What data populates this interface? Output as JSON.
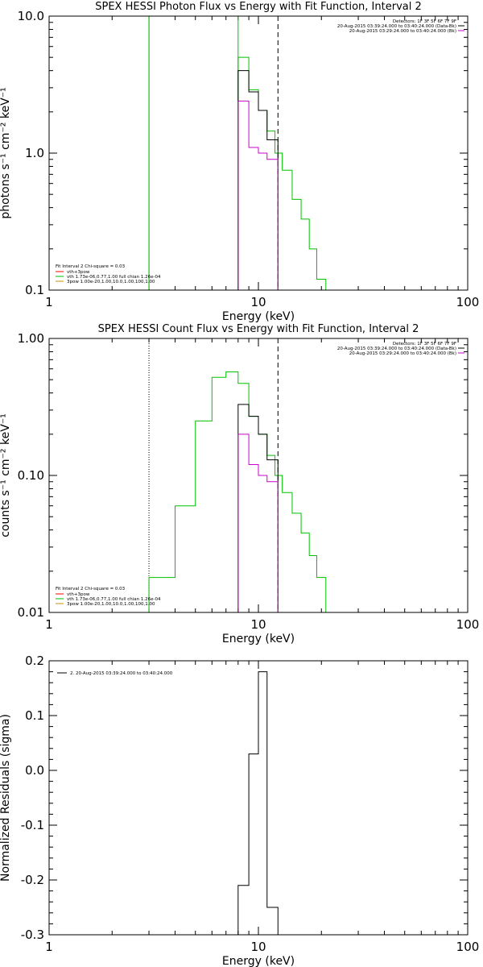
{
  "chart_data": [
    {
      "type": "line",
      "title": "SPEX HESSI Photon Flux vs Energy with Fit Function, Interval 2",
      "xlabel": "Energy (keV)",
      "ylabel": "photons s⁻¹ cm⁻² keV⁻¹",
      "xscale": "log",
      "yscale": "log",
      "xlim": [
        1,
        100
      ],
      "ylim": [
        0.1,
        10.0
      ],
      "xticks": [
        {
          "v": 1,
          "label": "1"
        },
        {
          "v": 10,
          "label": "10"
        },
        {
          "v": 100,
          "label": "100"
        }
      ],
      "yticks": [
        {
          "v": 0.1,
          "label": "0.1"
        },
        {
          "v": 1.0,
          "label": "1.0"
        },
        {
          "v": 10.0,
          "label": "10.0"
        }
      ],
      "vlines": [
        {
          "x": 3.0,
          "style": "solid",
          "color": "#00c000"
        },
        {
          "x": 12.4,
          "style": "dashed",
          "color": "#000000"
        }
      ],
      "legend_header": "Fit Interval 2   Chi-square = 0.03",
      "legend": [
        {
          "label": "vth+3pow",
          "color": "#ff0000"
        },
        {
          "label": "vth 1.73e-06,0.77,1.00   full chian 1.26e-04",
          "color": "#00c000"
        },
        {
          "label": "3pow 1.00e-20,1.00,10.0,1.00,100,1.00",
          "color": "#d09000"
        }
      ],
      "detectors": [
        {
          "label": "Detectors: 1F 3F 5F 6F 7F 9F",
          "color": null
        },
        {
          "label": "20-Aug-2015 03:39:24.000 to 03:40:24.000 (Data-Bk)",
          "color": "#000000"
        },
        {
          "label": "20-Aug-2015 03:29:24.000 to 03:40:24.000 (Bk)",
          "color": "#cc00cc"
        }
      ],
      "series": [
        {
          "color": "#00c000",
          "edges": [
            3.0,
            3.0
          ],
          "values": [],
          "vertical_to_top": [
            3.0,
            3.0,
            8.0
          ]
        },
        {
          "color": "#00c000",
          "edges": [
            8.0,
            9.0,
            10.0,
            11.0,
            12.0,
            13.0,
            14.5,
            16.0,
            17.5,
            19.0,
            21.0,
            23.0
          ],
          "values": [
            5.0,
            2.9,
            2.05,
            1.45,
            1.0,
            0.75,
            0.46,
            0.33,
            0.2,
            0.12,
            0.1
          ]
        },
        {
          "color": "#000000",
          "edges": [
            8.0,
            9.0,
            10.0,
            11.0,
            12.4
          ],
          "values": [
            4.0,
            2.8,
            2.05,
            1.25
          ]
        },
        {
          "color": "#cc00cc",
          "edges": [
            8.0,
            9.0,
            10.0,
            11.0,
            12.4
          ],
          "values": [
            2.4,
            1.1,
            1.0,
            0.9
          ]
        }
      ]
    },
    {
      "type": "line",
      "title": "SPEX HESSI Count Flux vs Energy with Fit Function, Interval 2",
      "xlabel": "Energy (keV)",
      "ylabel": "counts s⁻¹ cm⁻² keV⁻¹",
      "xscale": "log",
      "yscale": "log",
      "xlim": [
        1,
        100
      ],
      "ylim": [
        0.01,
        1.0
      ],
      "xticks": [
        {
          "v": 1,
          "label": "1"
        },
        {
          "v": 10,
          "label": "10"
        },
        {
          "v": 100,
          "label": "100"
        }
      ],
      "yticks": [
        {
          "v": 0.01,
          "label": "0.01"
        },
        {
          "v": 0.1,
          "label": "0.10"
        },
        {
          "v": 1.0,
          "label": "1.00"
        }
      ],
      "vlines": [
        {
          "x": 3.0,
          "style": "dotted",
          "color": "#000000"
        },
        {
          "x": 12.4,
          "style": "dashed",
          "color": "#000000"
        }
      ],
      "legend_header": "Fit Interval 2   Chi-square = 0.03",
      "legend": [
        {
          "label": "vth+3pow",
          "color": "#ff0000"
        },
        {
          "label": "vth 1.73e-06,0.77,1.00   full chian 1.26e-04",
          "color": "#00c000"
        },
        {
          "label": "3pow 1.00e-20,1.00,10.0,1.00,100,1.00",
          "color": "#d09000"
        }
      ],
      "detectors": [
        {
          "label": "Detectors: 1F 3F 5F 6F 7F 9F",
          "color": null
        },
        {
          "label": "20-Aug-2015 03:39:24.000 to 03:40:24.000 (Data-Bk)",
          "color": "#000000"
        },
        {
          "label": "20-Aug-2015 03:29:24.000 to 03:40:24.000 (Bk)",
          "color": "#cc00cc"
        }
      ],
      "series": [
        {
          "color": "#00c000",
          "edges": [
            3.0,
            3.5,
            4.0,
            5.0,
            6.0,
            7.0,
            8.0,
            9.0,
            10.0,
            11.0,
            12.0,
            13.0,
            14.5,
            16.0,
            17.5,
            19.0,
            21.0,
            23.0
          ],
          "values": [
            0.018,
            0.018,
            0.06,
            0.25,
            0.52,
            0.57,
            0.47,
            0.27,
            0.2,
            0.14,
            0.1,
            0.075,
            0.053,
            0.038,
            0.026,
            0.018,
            0.01
          ]
        },
        {
          "color": "#000000",
          "edges": [
            8.0,
            9.0,
            10.0,
            11.0,
            12.4
          ],
          "values": [
            0.33,
            0.27,
            0.2,
            0.13
          ]
        },
        {
          "color": "#cc00cc",
          "edges": [
            8.0,
            9.0,
            10.0,
            11.0,
            12.4
          ],
          "values": [
            0.2,
            0.12,
            0.1,
            0.09
          ]
        }
      ]
    },
    {
      "type": "line",
      "title": "",
      "xlabel": "Energy (keV)",
      "ylabel": "Normalized Residuals (sigma)",
      "xscale": "log",
      "yscale": "linear",
      "xlim": [
        1,
        100
      ],
      "ylim": [
        -0.3,
        0.2
      ],
      "xticks": [
        {
          "v": 1,
          "label": "1"
        },
        {
          "v": 10,
          "label": "10"
        },
        {
          "v": 100,
          "label": "100"
        }
      ],
      "yticks": [
        {
          "v": 0.2,
          "label": "0.2"
        },
        {
          "v": 0.1,
          "label": "0.1"
        },
        {
          "v": 0.0,
          "label": "0.0"
        },
        {
          "v": -0.1,
          "label": "-0.1"
        },
        {
          "v": -0.2,
          "label": "-0.2"
        },
        {
          "v": -0.3,
          "label": "-0.3"
        }
      ],
      "legend": [
        {
          "label": "2. 20-Aug-2015 03:39:24.000 to 03:40:24.000",
          "color": "#000000"
        }
      ],
      "series": [
        {
          "color": "#000000",
          "edges": [
            8.0,
            9.0,
            10.0,
            11.0,
            12.4
          ],
          "values": [
            -0.21,
            0.03,
            0.18,
            -0.25
          ]
        }
      ]
    }
  ]
}
